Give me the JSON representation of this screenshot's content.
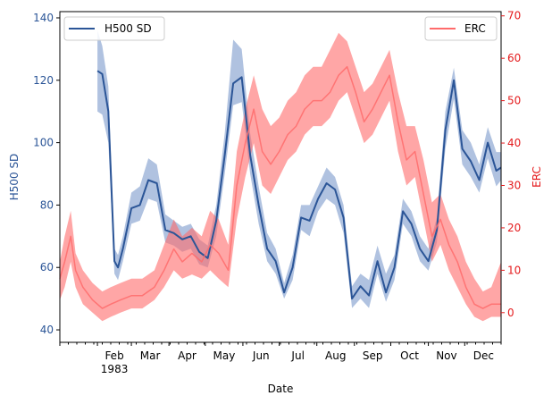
{
  "chart_data": {
    "type": "line",
    "xlabel": "Date",
    "x_tick_labels": [
      "Feb",
      "Mar",
      "Apr",
      "May",
      "Jun",
      "Jul",
      "Aug",
      "Sep",
      "Oct",
      "Nov",
      "Dec"
    ],
    "x_year_label": "1983",
    "left_axis": {
      "label": "H500 SD",
      "ticks": [
        40,
        60,
        80,
        100,
        120,
        140
      ],
      "ylim": [
        36,
        142
      ],
      "color": "#2b5597"
    },
    "right_axis": {
      "label": "ERC",
      "ticks": [
        0,
        10,
        20,
        30,
        40,
        50,
        60,
        70
      ],
      "ylim": [
        -7,
        71
      ],
      "color": "#e41a1c"
    },
    "legend": [
      {
        "name": "H500 SD",
        "placement": "upper-left",
        "color": "#2b5597"
      },
      {
        "name": "ERC",
        "placement": "upper-right",
        "color": "#ff6b6b"
      }
    ],
    "series": [
      {
        "name": "H500 SD",
        "axis": "left",
        "color": "#2b5597",
        "band_color": "#6f8fc6",
        "dates": [
          "1983-02-01",
          "1983-02-05",
          "1983-02-10",
          "1983-02-15",
          "1983-02-18",
          "1983-02-22",
          "1983-03-01",
          "1983-03-08",
          "1983-03-15",
          "1983-03-22",
          "1983-03-29",
          "1983-04-05",
          "1983-04-12",
          "1983-04-19",
          "1983-04-26",
          "1983-05-03",
          "1983-05-10",
          "1983-05-17",
          "1983-05-24",
          "1983-05-31",
          "1983-06-07",
          "1983-06-14",
          "1983-06-21",
          "1983-06-28",
          "1983-07-05",
          "1983-07-12",
          "1983-07-19",
          "1983-07-26",
          "1983-08-02",
          "1983-08-09",
          "1983-08-16",
          "1983-08-23",
          "1983-08-30",
          "1983-09-06",
          "1983-09-13",
          "1983-09-20",
          "1983-09-27",
          "1983-10-04",
          "1983-10-11",
          "1983-10-18",
          "1983-10-25",
          "1983-11-01",
          "1983-11-08",
          "1983-11-15",
          "1983-11-22",
          "1983-11-29",
          "1983-12-06",
          "1983-12-13",
          "1983-12-20",
          "1983-12-27",
          "1983-12-31"
        ],
        "values": [
          123,
          122,
          110,
          62,
          60,
          66,
          79,
          80,
          88,
          87,
          72,
          71,
          69,
          70,
          65,
          63,
          75,
          96,
          119,
          121,
          96,
          80,
          66,
          62,
          52,
          60,
          76,
          75,
          82,
          87,
          85,
          76,
          50,
          54,
          51,
          62,
          52,
          60,
          78,
          74,
          66,
          62,
          72,
          104,
          120,
          98,
          94,
          88,
          100,
          91,
          92
        ],
        "lower": [
          110,
          109,
          100,
          58,
          56,
          62,
          74,
          75,
          82,
          81,
          68,
          67,
          65,
          66,
          61,
          60,
          70,
          90,
          112,
          113,
          90,
          74,
          62,
          58,
          50,
          56,
          72,
          70,
          78,
          82,
          80,
          71,
          47,
          50,
          47,
          58,
          49,
          56,
          74,
          70,
          62,
          59,
          68,
          98,
          114,
          93,
          89,
          84,
          95,
          86,
          88
        ],
        "upper": [
          136,
          131,
          118,
          66,
          64,
          70,
          84,
          86,
          95,
          93,
          77,
          75,
          73,
          74,
          69,
          67,
          80,
          103,
          133,
          130,
          103,
          86,
          71,
          66,
          55,
          64,
          80,
          80,
          86,
          92,
          89,
          80,
          54,
          58,
          56,
          67,
          58,
          64,
          82,
          78,
          70,
          66,
          76,
          110,
          124,
          104,
          100,
          93,
          105,
          97,
          97
        ]
      },
      {
        "name": "ERC",
        "axis": "right",
        "color": "#ff6b6b",
        "band_color": "#ff6b6b",
        "dates": [
          "1983-01-01",
          "1983-01-05",
          "1983-01-10",
          "1983-01-14",
          "1983-01-20",
          "1983-01-28",
          "1983-02-05",
          "1983-02-12",
          "1983-02-20",
          "1983-03-01",
          "1983-03-10",
          "1983-03-20",
          "1983-03-28",
          "1983-04-05",
          "1983-04-12",
          "1983-04-20",
          "1983-04-28",
          "1983-05-05",
          "1983-05-12",
          "1983-05-20",
          "1983-05-27",
          "1983-06-03",
          "1983-06-10",
          "1983-06-17",
          "1983-06-24",
          "1983-07-01",
          "1983-07-08",
          "1983-07-15",
          "1983-07-22",
          "1983-07-29",
          "1983-08-05",
          "1983-08-12",
          "1983-08-19",
          "1983-08-26",
          "1983-09-02",
          "1983-09-09",
          "1983-09-16",
          "1983-09-23",
          "1983-09-30",
          "1983-10-07",
          "1983-10-14",
          "1983-10-21",
          "1983-10-28",
          "1983-11-04",
          "1983-11-11",
          "1983-11-18",
          "1983-11-25",
          "1983-12-02",
          "1983-12-09",
          "1983-12-16",
          "1983-12-23",
          "1983-12-31"
        ],
        "values": [
          8,
          12,
          18,
          10,
          6,
          3,
          1,
          2,
          3,
          4,
          4,
          6,
          10,
          15,
          12,
          14,
          12,
          16,
          14,
          10,
          30,
          40,
          48,
          38,
          35,
          38,
          42,
          44,
          48,
          50,
          50,
          52,
          56,
          58,
          52,
          45,
          48,
          52,
          56,
          45,
          36,
          38,
          28,
          18,
          22,
          16,
          12,
          6,
          2,
          1,
          2,
          2
        ],
        "lower": [
          3,
          6,
          12,
          6,
          2,
          0,
          -2,
          -1,
          0,
          1,
          1,
          3,
          6,
          10,
          8,
          9,
          8,
          10,
          8,
          6,
          22,
          32,
          40,
          30,
          28,
          32,
          36,
          38,
          42,
          44,
          44,
          46,
          50,
          52,
          46,
          40,
          42,
          46,
          50,
          38,
          30,
          32,
          22,
          12,
          16,
          10,
          6,
          2,
          -1,
          -2,
          -1,
          -1
        ],
        "upper": [
          12,
          18,
          24,
          14,
          10,
          7,
          5,
          6,
          7,
          8,
          8,
          10,
          16,
          22,
          18,
          20,
          18,
          24,
          22,
          16,
          38,
          48,
          56,
          48,
          44,
          46,
          50,
          52,
          56,
          58,
          58,
          62,
          66,
          64,
          58,
          52,
          54,
          58,
          62,
          52,
          44,
          44,
          36,
          26,
          28,
          22,
          18,
          12,
          8,
          5,
          6,
          12
        ]
      }
    ]
  }
}
